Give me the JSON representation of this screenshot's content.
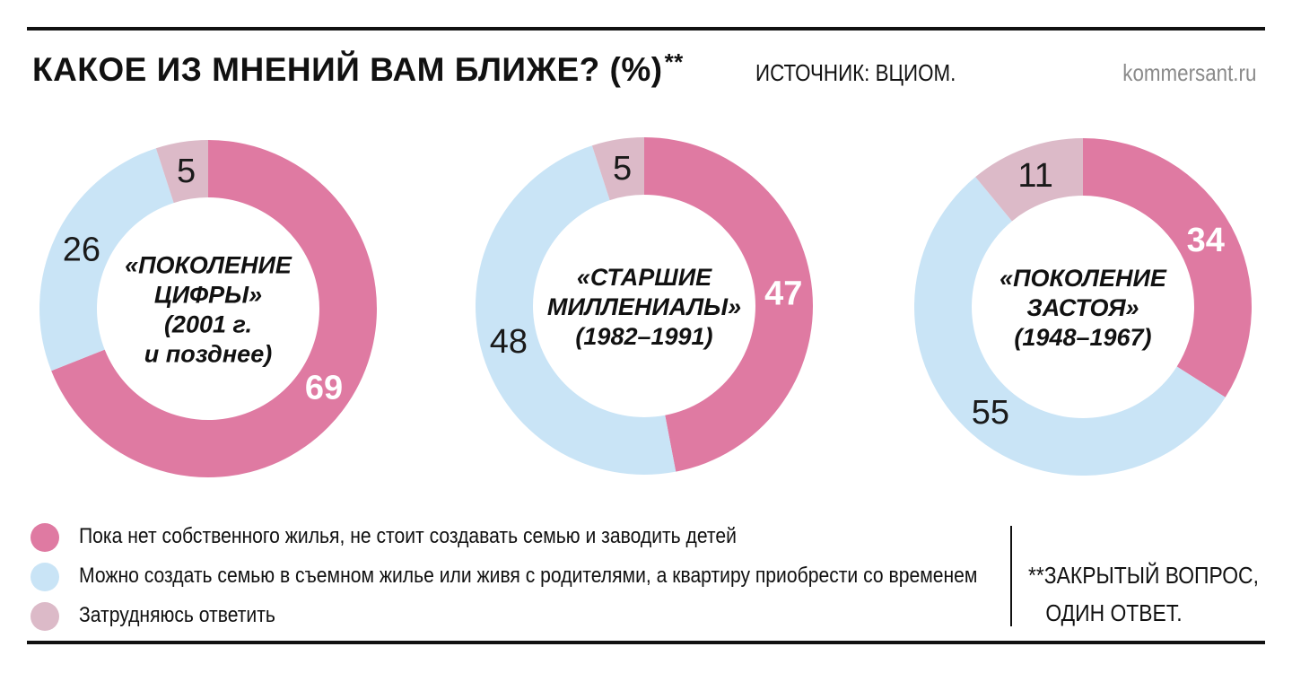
{
  "header": {
    "title": "КАКОЕ ИЗ МНЕНИЙ ВАМ БЛИЖЕ? (%)",
    "title_mark": "**",
    "source": "ИСТОЧНИК: ВЦИОМ.",
    "site": "kommersant.ru"
  },
  "chart_data": [
    {
      "type": "pie",
      "center_label": [
        "«ПОКОЛЕНИЕ",
        "ЦИФРЫ»",
        "(2001 г.",
        "и позднее)"
      ],
      "slices": [
        {
          "value": 69,
          "label": "69",
          "color": "#df7aa2"
        },
        {
          "value": 26,
          "label": "26",
          "color": "#c9e4f6"
        },
        {
          "value": 5,
          "label": "5",
          "color": "#dcbac8"
        }
      ]
    },
    {
      "type": "pie",
      "center_label": [
        "«СТАРШИЕ",
        "МИЛЛЕНИАЛЫ»",
        "(1982–1991)"
      ],
      "slices": [
        {
          "value": 47,
          "label": "47",
          "color": "#df7aa2"
        },
        {
          "value": 48,
          "label": "48",
          "color": "#c9e4f6"
        },
        {
          "value": 5,
          "label": "5",
          "color": "#dcbac8"
        }
      ]
    },
    {
      "type": "pie",
      "center_label": [
        "«ПОКОЛЕНИЕ",
        "ЗАСТОЯ»",
        "(1948–1967)"
      ],
      "slices": [
        {
          "value": 34,
          "label": "34",
          "color": "#df7aa2"
        },
        {
          "value": 55,
          "label": "55",
          "color": "#c9e4f6"
        },
        {
          "value": 11,
          "label": "11",
          "color": "#dcbac8"
        }
      ]
    }
  ],
  "legend": [
    {
      "label": "Пока нет собственного жилья, не стоит создавать семью и заводить детей",
      "color": "#df7aa2"
    },
    {
      "label": "Можно создать семью в съемном жилье или живя с родителями, а квартиру приобрести со временем",
      "color": "#c9e4f6"
    },
    {
      "label": "Затрудняюсь ответить",
      "color": "#dcbac8"
    }
  ],
  "footnote": {
    "line1": "**ЗАКРЫТЫЙ ВОПРОС,",
    "line2": "ОДИН ОТВЕТ."
  }
}
